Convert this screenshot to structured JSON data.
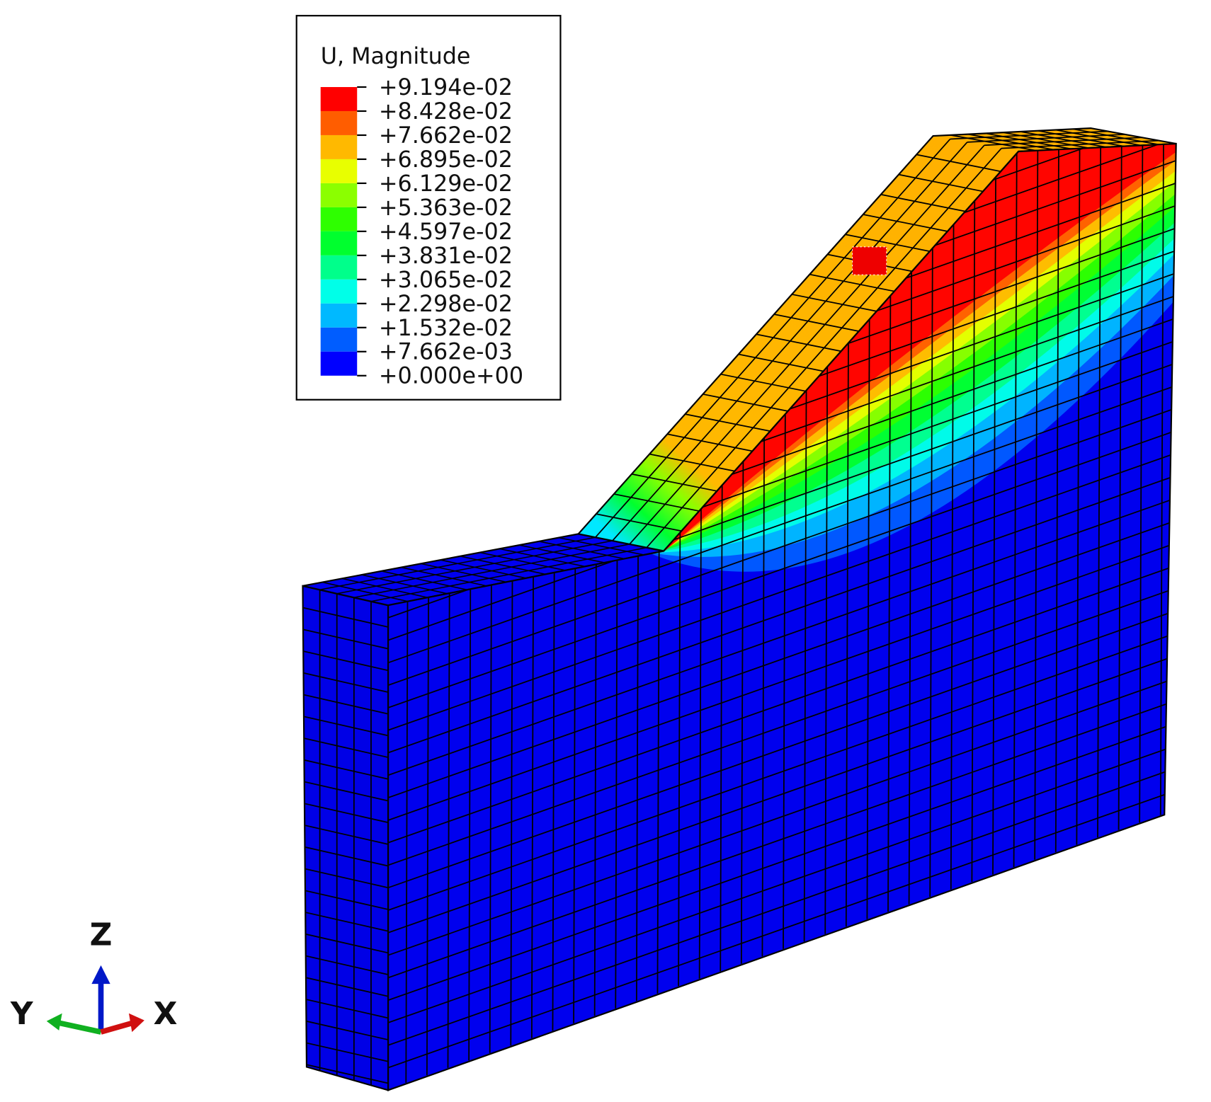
{
  "legend": {
    "title": "U, Magnitude",
    "levels": [
      "+9.194e-02",
      "+8.428e-02",
      "+7.662e-02",
      "+6.895e-02",
      "+6.129e-02",
      "+5.363e-02",
      "+4.597e-02",
      "+3.831e-02",
      "+3.065e-02",
      "+2.298e-02",
      "+1.532e-02",
      "+7.662e-03",
      "+0.000e+00"
    ],
    "colors": [
      "#ff0000",
      "#ff5d00",
      "#ffb900",
      "#e8ff00",
      "#8bff00",
      "#2eff00",
      "#00ff2e",
      "#00ff8b",
      "#00ffe8",
      "#00b9ff",
      "#005dff",
      "#0000ff"
    ]
  },
  "triad": {
    "z": "Z",
    "y": "Y",
    "x": "X"
  }
}
